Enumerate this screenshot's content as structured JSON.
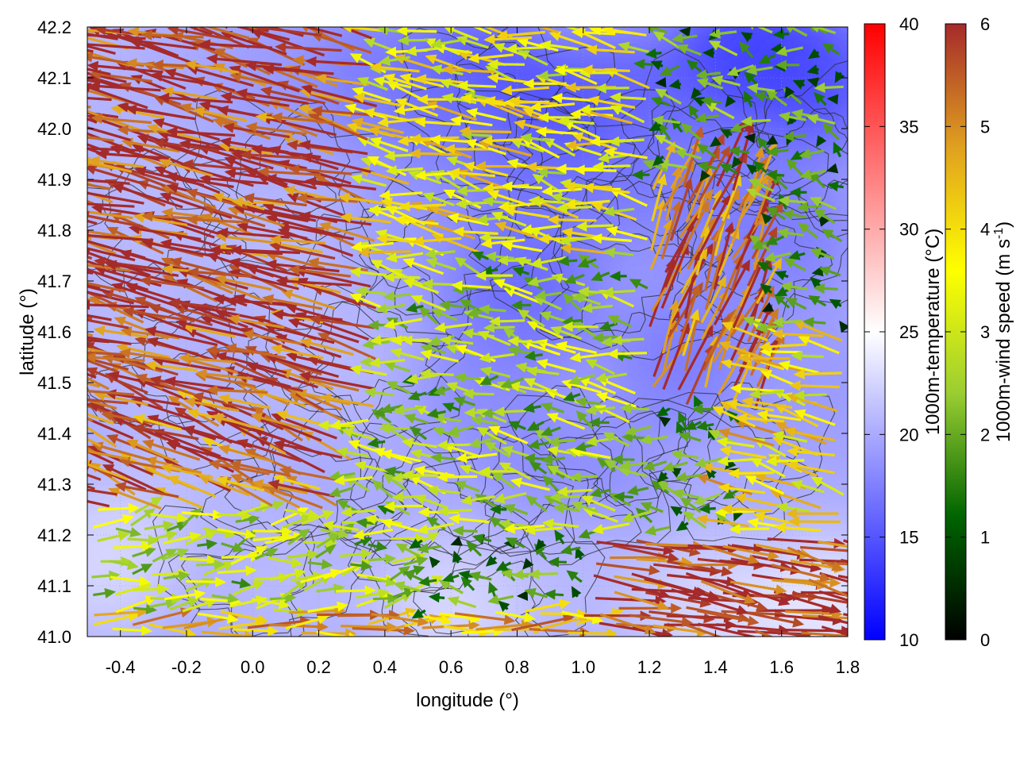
{
  "chart_data": {
    "type": "heatmap",
    "subtype": "temperature field with wind vectors and terrain contours",
    "xlabel": "longitude (°)",
    "ylabel": "latitude (°)",
    "xlim": [
      -0.5,
      1.8
    ],
    "ylim": [
      41.0,
      42.2
    ],
    "xticks": [
      -0.4,
      -0.2,
      0.0,
      0.2,
      0.4,
      0.6,
      0.8,
      1.0,
      1.2,
      1.4,
      1.6,
      1.8
    ],
    "yticks": [
      41.0,
      41.1,
      41.2,
      41.3,
      41.4,
      41.5,
      41.6,
      41.7,
      41.8,
      41.9,
      42.0,
      42.1,
      42.2
    ],
    "xtick_labels": [
      "-0.4",
      "-0.2",
      "0.0",
      "0.2",
      "0.4",
      "0.6",
      "0.8",
      "1.0",
      "1.2",
      "1.4",
      "1.6",
      "1.8"
    ],
    "ytick_labels": [
      "41.0",
      "41.1",
      "41.2",
      "41.3",
      "41.4",
      "41.5",
      "41.6",
      "41.7",
      "41.8",
      "41.9",
      "42.0",
      "42.1",
      "42.2"
    ],
    "grid": true,
    "temperature_colorbar": {
      "label": "1000m-temperature (°C)",
      "range": [
        10,
        40
      ],
      "ticks": [
        10,
        15,
        20,
        25,
        30,
        35,
        40
      ],
      "tick_labels": [
        "10",
        "15",
        "20",
        "25",
        "30",
        "35",
        "40"
      ],
      "colors": [
        "#0000ff",
        "#ffffff",
        "#ff0000"
      ]
    },
    "wind_colorbar": {
      "label_prefix": "1000m-wind speed (m s",
      "label_exponent": "-1",
      "label_suffix": ")",
      "range": [
        0,
        6
      ],
      "ticks": [
        0,
        1,
        2,
        3,
        4,
        5,
        6
      ],
      "tick_labels": [
        "0",
        "1",
        "2",
        "3",
        "4",
        "5",
        "6"
      ],
      "colors": [
        "#000000",
        "#006400",
        "#9acd32",
        "#ffff00",
        "#e0a020",
        "#a52a2a"
      ]
    },
    "temperature_field": [
      {
        "lon": -0.45,
        "lat": 42.15,
        "t": 21
      },
      {
        "lon": -0.2,
        "lat": 42.1,
        "t": 20
      },
      {
        "lon": 0.1,
        "lat": 42.1,
        "t": 19
      },
      {
        "lon": 0.4,
        "lat": 42.1,
        "t": 17
      },
      {
        "lon": 0.7,
        "lat": 42.1,
        "t": 15
      },
      {
        "lon": 0.8,
        "lat": 42.0,
        "t": 14
      },
      {
        "lon": 1.1,
        "lat": 42.05,
        "t": 15
      },
      {
        "lon": 1.5,
        "lat": 42.15,
        "t": 13
      },
      {
        "lon": 1.7,
        "lat": 42.1,
        "t": 14
      },
      {
        "lon": 1.3,
        "lat": 41.9,
        "t": 17
      },
      {
        "lon": 0.6,
        "lat": 41.95,
        "t": 17
      },
      {
        "lon": -0.3,
        "lat": 41.85,
        "t": 21
      },
      {
        "lon": 0.1,
        "lat": 41.75,
        "t": 21
      },
      {
        "lon": 0.5,
        "lat": 41.8,
        "t": 19
      },
      {
        "lon": 0.9,
        "lat": 41.8,
        "t": 17
      },
      {
        "lon": 1.6,
        "lat": 41.8,
        "t": 17
      },
      {
        "lon": 0.8,
        "lat": 41.65,
        "t": 16
      },
      {
        "lon": -0.4,
        "lat": 41.6,
        "t": 21
      },
      {
        "lon": 0.2,
        "lat": 41.55,
        "t": 21
      },
      {
        "lon": 1.3,
        "lat": 41.55,
        "t": 17
      },
      {
        "lon": 1.7,
        "lat": 41.5,
        "t": 19
      },
      {
        "lon": 0.7,
        "lat": 41.45,
        "t": 18
      },
      {
        "lon": -0.2,
        "lat": 41.35,
        "t": 21
      },
      {
        "lon": 0.4,
        "lat": 41.3,
        "t": 20
      },
      {
        "lon": 1.0,
        "lat": 41.3,
        "t": 18
      },
      {
        "lon": 1.5,
        "lat": 41.25,
        "t": 20
      },
      {
        "lon": -0.45,
        "lat": 41.15,
        "t": 23
      },
      {
        "lon": 0.1,
        "lat": 41.1,
        "t": 21
      },
      {
        "lon": 0.6,
        "lat": 41.05,
        "t": 23
      },
      {
        "lon": 1.0,
        "lat": 41.1,
        "t": 21
      },
      {
        "lon": 1.4,
        "lat": 41.05,
        "t": 23
      },
      {
        "lon": 1.75,
        "lat": 41.05,
        "t": 24
      }
    ],
    "wind_regions": [
      {
        "lon": [
          -0.5,
          0.4
        ],
        "lat": [
          41.45,
          42.2
        ],
        "u": -5.6,
        "v": 1.3
      },
      {
        "lon": [
          -0.5,
          0.3
        ],
        "lat": [
          41.25,
          41.45
        ],
        "u": -5.0,
        "v": 2.0
      },
      {
        "lon": [
          0.4,
          1.2
        ],
        "lat": [
          41.75,
          42.2
        ],
        "u": -3.5,
        "v": 0.6
      },
      {
        "lon": [
          1.2,
          1.55
        ],
        "lat": [
          41.45,
          41.9
        ],
        "u": 2.0,
        "v": 5.0
      },
      {
        "lon": [
          1.5,
          1.8
        ],
        "lat": [
          41.2,
          41.6
        ],
        "u": -3.8,
        "v": 0.8
      },
      {
        "lon": [
          0.3,
          1.2
        ],
        "lat": [
          41.2,
          41.75
        ],
        "u": -2.4,
        "v": 0.4
      },
      {
        "lon": [
          -0.5,
          0.5
        ],
        "lat": [
          41.05,
          41.25
        ],
        "u": 2.5,
        "v": 0.5
      },
      {
        "lon": [
          1.0,
          1.8
        ],
        "lat": [
          41.0,
          41.2
        ],
        "u": 5.8,
        "v": -1.0
      },
      {
        "lon": [
          -0.5,
          1.0
        ],
        "lat": [
          41.0,
          41.05
        ],
        "u": 4.5,
        "v": 0.2
      }
    ]
  }
}
